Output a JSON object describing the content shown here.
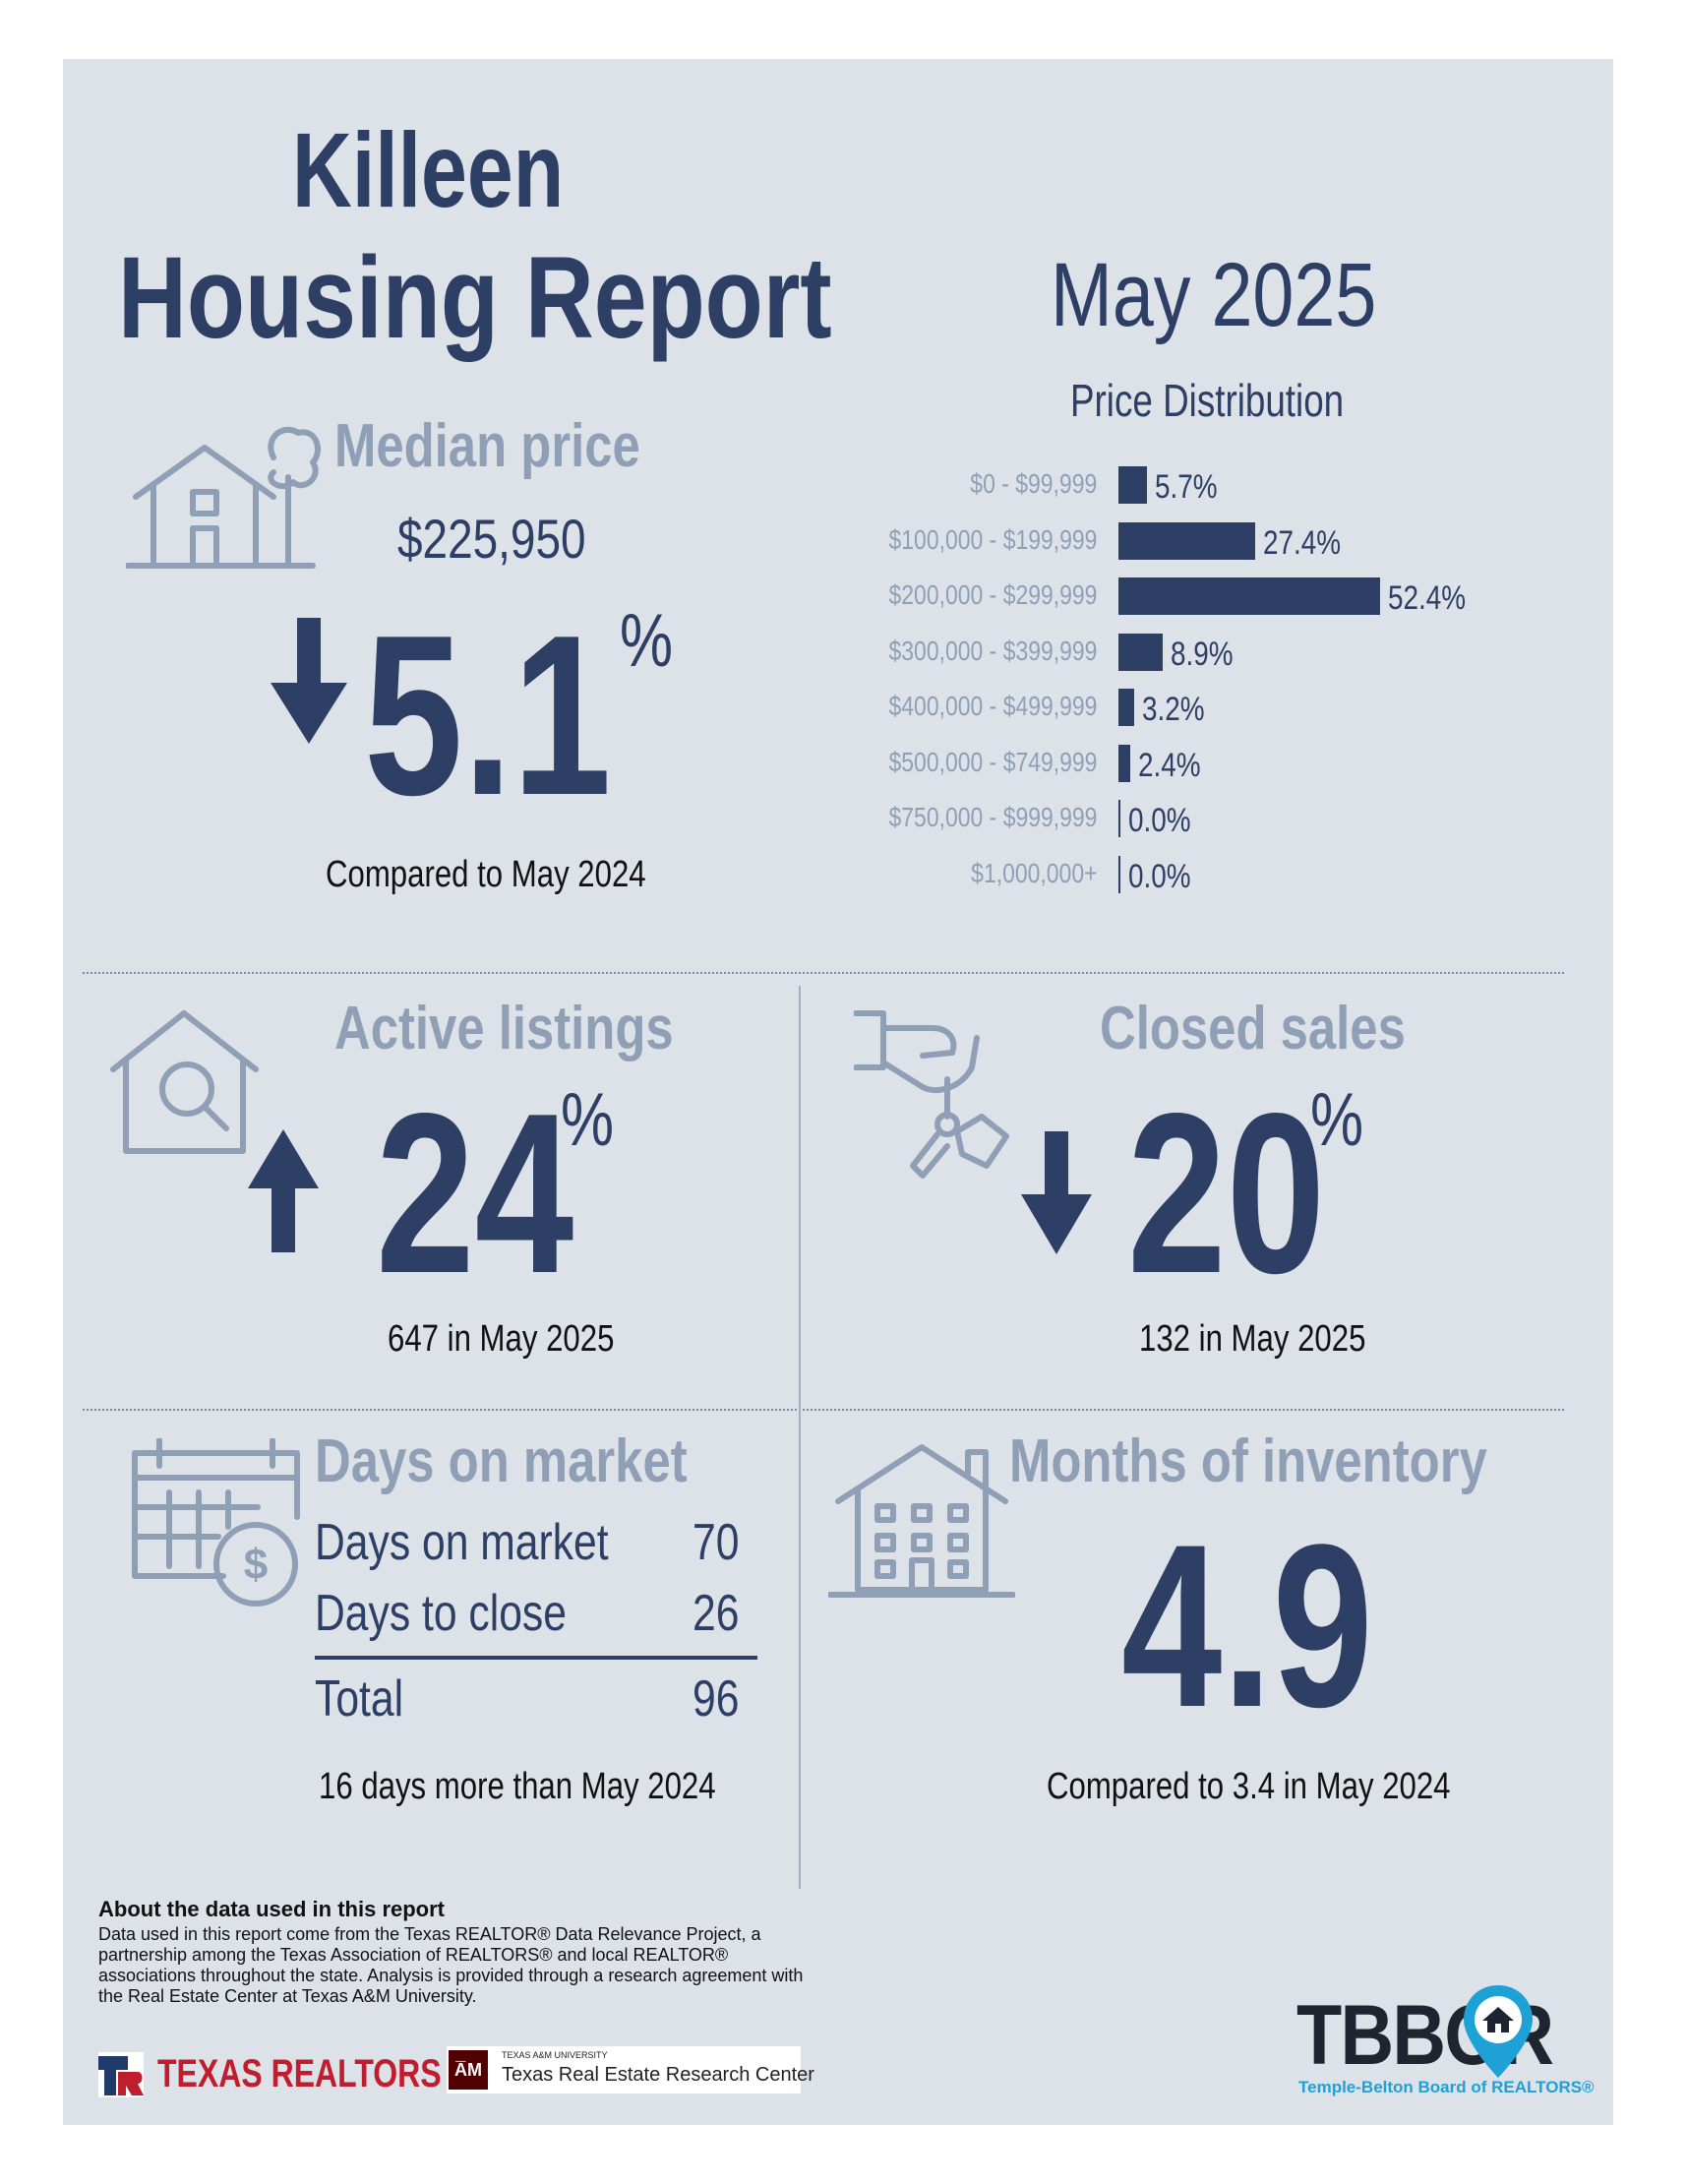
{
  "header": {
    "city": "Killeen",
    "title": "Housing Report",
    "date": "May 2025"
  },
  "median_price": {
    "heading": "Median price",
    "value": "$225,950",
    "direction": "down",
    "change": "5.1",
    "unit": "%",
    "caption": "Compared to May 2024"
  },
  "price_distribution": {
    "title": "Price Distribution",
    "rows": [
      {
        "label": "$0 - $99,999",
        "value": "5.7%",
        "percent": 5.7
      },
      {
        "label": "$100,000 - $199,999",
        "value": "27.4%",
        "percent": 27.4
      },
      {
        "label": "$200,000 - $299,999",
        "value": "52.4%",
        "percent": 52.4
      },
      {
        "label": "$300,000 - $399,999",
        "value": "8.9%",
        "percent": 8.9
      },
      {
        "label": "$400,000 - $499,999",
        "value": "3.2%",
        "percent": 3.2
      },
      {
        "label": "$500,000 - $749,999",
        "value": "2.4%",
        "percent": 2.4
      },
      {
        "label": "$750,000 - $999,999",
        "value": "0.0%",
        "percent": 0.0
      },
      {
        "label": "$1,000,000+",
        "value": "0.0%",
        "percent": 0.0
      }
    ]
  },
  "active_listings": {
    "heading": "Active listings",
    "direction": "up",
    "change": "24",
    "unit": "%",
    "caption": "647 in May 2025"
  },
  "closed_sales": {
    "heading": "Closed sales",
    "direction": "down",
    "change": "20",
    "unit": "%",
    "caption": "132 in May 2025"
  },
  "days_on_market": {
    "heading": "Days on market",
    "rows": [
      {
        "label": "Days on market",
        "value": "70"
      },
      {
        "label": "Days to close",
        "value": "26"
      }
    ],
    "total_label": "Total",
    "total_value": "96",
    "caption": "16 days more than May 2024"
  },
  "months_inventory": {
    "heading": "Months of inventory",
    "value": "4.9",
    "caption": "Compared to 3.4 in May 2024"
  },
  "about": {
    "title": "About the data used in this report",
    "text": "Data used in this report come from the Texas REALTOR® Data Relevance Project, a partnership among the Texas Association of REALTORS® and local REALTOR® associations throughout the state. Analysis is provided through a research agreement with the Real Estate Center at Texas A&M University."
  },
  "logos": {
    "texas_realtors": "TEXAS REALTORS",
    "tamu_small": "TEXAS A&M UNIVERSITY",
    "tamu_center": "Texas Real Estate Research Center",
    "tbbor": "TBBOR",
    "tbbor_sub": "Temple-Belton Board of REALTORS®"
  },
  "colors": {
    "navy": "#2e3f66",
    "muted": "#8fa0b6",
    "panel": "#dde1e8",
    "red": "#bf1e2e",
    "teal": "#1ea1d6"
  }
}
